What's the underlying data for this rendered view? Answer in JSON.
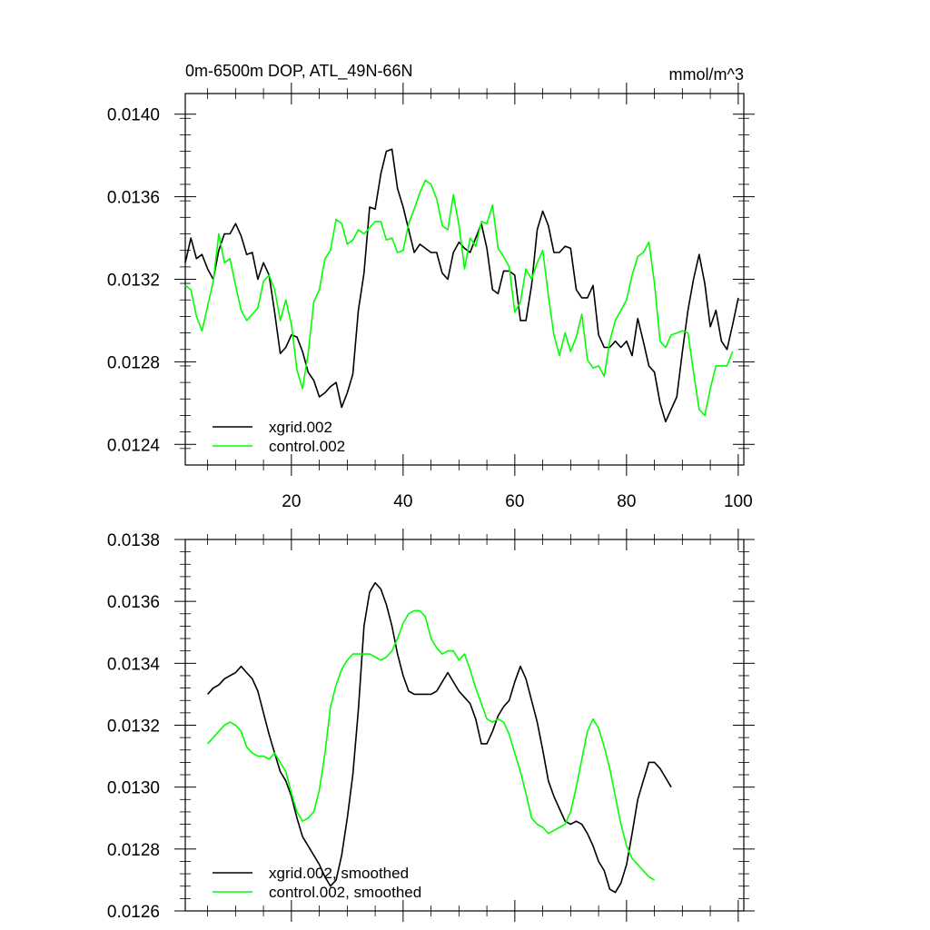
{
  "chart_data": [
    {
      "type": "line",
      "title": "0m-6500m DOP, ATL_49N-66N",
      "units": "mmol/m^3",
      "xlim": [
        1,
        101
      ],
      "ylim": [
        0.0123,
        0.0141
      ],
      "x_ticks": [
        20,
        40,
        60,
        80,
        100
      ],
      "x_tick_labels": [
        "20",
        "40",
        "60",
        "80",
        "100"
      ],
      "y_ticks": [
        0.0124,
        0.0128,
        0.0132,
        0.0136,
        0.014
      ],
      "y_tick_labels": [
        "0.0124",
        "0.0128",
        "0.0132",
        "0.0136",
        "0.0140"
      ],
      "legend": "bottom-left",
      "series": [
        {
          "name": "xgrid.002",
          "color": "#000000",
          "x_start": 1,
          "values": [
            0.01328,
            0.0134,
            0.0133,
            0.01332,
            0.01325,
            0.0132,
            0.01334,
            0.01342,
            0.01342,
            0.01347,
            0.01341,
            0.01332,
            0.01333,
            0.0132,
            0.01328,
            0.01322,
            0.01304,
            0.01284,
            0.01287,
            0.01293,
            0.01292,
            0.01285,
            0.01275,
            0.01271,
            0.01263,
            0.01265,
            0.01268,
            0.0127,
            0.01258,
            0.01265,
            0.01274,
            0.01305,
            0.01323,
            0.01355,
            0.01354,
            0.01371,
            0.01382,
            0.01383,
            0.01364,
            0.01355,
            0.01344,
            0.01333,
            0.01337,
            0.01335,
            0.01333,
            0.01333,
            0.01323,
            0.0132,
            0.01333,
            0.01338,
            0.01335,
            0.01333,
            0.0134,
            0.01347,
            0.01335,
            0.01315,
            0.01313,
            0.01324,
            0.01324,
            0.01322,
            0.013,
            0.013,
            0.01317,
            0.01344,
            0.01353,
            0.01346,
            0.01333,
            0.01333,
            0.01336,
            0.01335,
            0.01315,
            0.01311,
            0.01311,
            0.01317,
            0.01293,
            0.01287,
            0.01287,
            0.0129,
            0.01287,
            0.0129,
            0.01283,
            0.01301,
            0.0129,
            0.01278,
            0.01275,
            0.0126,
            0.01251,
            0.01257,
            0.01263,
            0.01285,
            0.01305,
            0.0132,
            0.01332,
            0.01318,
            0.01297,
            0.01305,
            0.0129,
            0.01286,
            0.01298,
            0.01311
          ]
        },
        {
          "name": "control.002",
          "color": "#00ff00",
          "x_start": 1,
          "values": [
            0.01317,
            0.01315,
            0.01302,
            0.01295,
            0.01307,
            0.01319,
            0.01342,
            0.01328,
            0.0133,
            0.01317,
            0.01305,
            0.013,
            0.01303,
            0.01306,
            0.01319,
            0.01322,
            0.01315,
            0.013,
            0.0131,
            0.01298,
            0.01276,
            0.01267,
            0.01284,
            0.01309,
            0.01315,
            0.0133,
            0.01334,
            0.01349,
            0.01347,
            0.01337,
            0.01339,
            0.01344,
            0.01342,
            0.01345,
            0.01348,
            0.01348,
            0.01339,
            0.0134,
            0.01333,
            0.01334,
            0.01347,
            0.01354,
            0.01362,
            0.01368,
            0.01366,
            0.01359,
            0.01346,
            0.01344,
            0.01361,
            0.01346,
            0.01325,
            0.0134,
            0.01336,
            0.01348,
            0.01347,
            0.01356,
            0.01335,
            0.01331,
            0.01326,
            0.01304,
            0.01309,
            0.01325,
            0.0132,
            0.01328,
            0.01334,
            0.01312,
            0.01293,
            0.01283,
            0.01294,
            0.01285,
            0.01292,
            0.01303,
            0.01281,
            0.01277,
            0.01278,
            0.01273,
            0.0129,
            0.013,
            0.01305,
            0.0131,
            0.01322,
            0.01331,
            0.01333,
            0.01338,
            0.01318,
            0.0129,
            0.01287,
            0.01293,
            0.01294,
            0.01295,
            0.01294,
            0.01275,
            0.01257,
            0.01254,
            0.01267,
            0.01278,
            0.01278,
            0.01278,
            0.01285
          ]
        }
      ]
    },
    {
      "type": "line",
      "title": "",
      "xlim": [
        1,
        101
      ],
      "ylim": [
        0.0126,
        0.0138
      ],
      "x_ticks": [
        20,
        40,
        60,
        80,
        100
      ],
      "x_tick_labels": [],
      "y_ticks": [
        0.0126,
        0.0128,
        0.013,
        0.0132,
        0.0134,
        0.0136,
        0.0138
      ],
      "y_tick_labels": [
        "0.0126",
        "0.0128",
        "0.0130",
        "0.0132",
        "0.0134",
        "0.0136",
        "0.0138"
      ],
      "legend": "bottom-left",
      "series": [
        {
          "name": "xgrid.002, smoothed",
          "color": "#000000",
          "x_start": 5,
          "values": [
            0.0133,
            0.01332,
            0.01333,
            0.01335,
            0.01336,
            0.01337,
            0.01339,
            0.01337,
            0.01335,
            0.01331,
            0.01324,
            0.01317,
            0.01311,
            0.01305,
            0.01302,
            0.01297,
            0.0129,
            0.01284,
            0.01281,
            0.01278,
            0.01275,
            0.01271,
            0.01268,
            0.0127,
            0.01278,
            0.0129,
            0.01304,
            0.01325,
            0.01352,
            0.01363,
            0.01366,
            0.01364,
            0.01359,
            0.01352,
            0.01343,
            0.01336,
            0.01331,
            0.0133,
            0.0133,
            0.0133,
            0.0133,
            0.01331,
            0.01334,
            0.01337,
            0.01334,
            0.01331,
            0.01329,
            0.01327,
            0.01322,
            0.01314,
            0.01314,
            0.01318,
            0.01323,
            0.01326,
            0.01328,
            0.01334,
            0.01339,
            0.01335,
            0.01328,
            0.01321,
            0.01312,
            0.01302,
            0.01297,
            0.01293,
            0.01289,
            0.01288,
            0.01289,
            0.01288,
            0.01285,
            0.01281,
            0.01276,
            0.01273,
            0.01267,
            0.01266,
            0.01269,
            0.01275,
            0.01285,
            0.01296,
            0.01302,
            0.01308,
            0.01308,
            0.01306,
            0.01303,
            0.013
          ]
        },
        {
          "name": "control.002, smoothed",
          "color": "#00ff00",
          "x_start": 5,
          "values": [
            0.01314,
            0.01316,
            0.01318,
            0.0132,
            0.01321,
            0.0132,
            0.01318,
            0.01313,
            0.01311,
            0.0131,
            0.0131,
            0.01309,
            0.01311,
            0.01308,
            0.01305,
            0.01298,
            0.01292,
            0.01289,
            0.0129,
            0.01292,
            0.01299,
            0.01311,
            0.01326,
            0.01333,
            0.01338,
            0.01341,
            0.01343,
            0.01343,
            0.01343,
            0.01343,
            0.01342,
            0.01341,
            0.01342,
            0.01344,
            0.01348,
            0.01353,
            0.01356,
            0.01357,
            0.01357,
            0.01355,
            0.01348,
            0.01345,
            0.01343,
            0.01344,
            0.01344,
            0.01341,
            0.01343,
            0.01338,
            0.01332,
            0.01327,
            0.01322,
            0.01321,
            0.01322,
            0.01321,
            0.01317,
            0.01311,
            0.01305,
            0.01298,
            0.0129,
            0.01288,
            0.01287,
            0.01285,
            0.01286,
            0.01287,
            0.01288,
            0.01292,
            0.013,
            0.01309,
            0.01318,
            0.01322,
            0.01319,
            0.01313,
            0.01306,
            0.01297,
            0.01288,
            0.01281,
            0.01277,
            0.01275,
            0.01273,
            0.01271,
            0.0127
          ]
        }
      ]
    }
  ]
}
